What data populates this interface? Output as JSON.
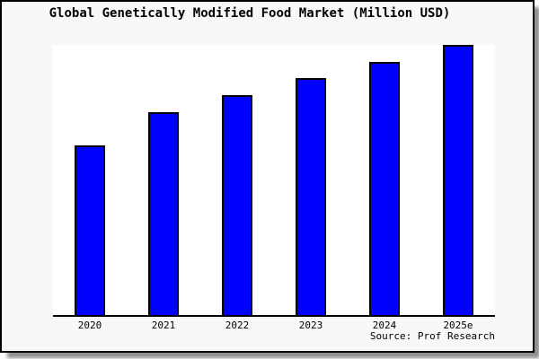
{
  "chart": {
    "title": "Global Genetically Modified Food Market (Million USD)",
    "source": "Source: Prof Research"
  },
  "chart_data": {
    "type": "bar",
    "title": "Global Genetically Modified Food Market (Million USD)",
    "categories": [
      "2020",
      "2021",
      "2022",
      "2023",
      "2024",
      "2025e"
    ],
    "values": [
      62.8,
      75.1,
      81.4,
      87.7,
      93.7,
      100
    ],
    "values_note": "No numeric y-axis is shown in the image; values are bar heights expressed as percent of the tallest bar (2025e = 100)",
    "xlabel": "",
    "ylabel": "",
    "ylim": [
      0,
      100
    ],
    "grid": false,
    "legend": false,
    "source": "Source: Prof Research",
    "colors": {
      "bar_fill": "#0000ff",
      "bar_border": "#000000",
      "plot_background": "#ffffff",
      "card_background": "#f8f8f8",
      "card_border": "#000000",
      "axis_line": "#000000",
      "text": "#000000",
      "shadow": "#8f8f8f"
    }
  }
}
